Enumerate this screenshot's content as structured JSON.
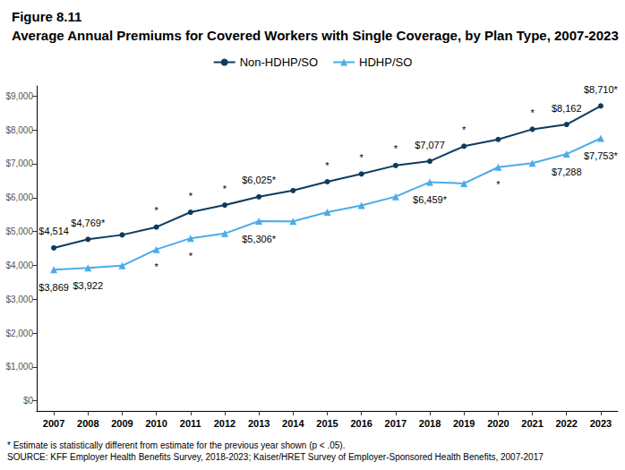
{
  "chart_data": {
    "type": "line",
    "title": "Figure 8.11",
    "subtitle": "Average Annual Premiums for Covered Workers with Single Coverage, by Plan Type, 2007-2023",
    "notes": [
      "* Estimate is statistically different from estimate for the previous year shown (p < .05).",
      "SOURCE: KFF Employer Health Benefits Survey, 2018-2023; Kaiser/HRET Survey of Employer-Sponsored Health Benefits, 2007-2017"
    ],
    "categories": [
      "2007",
      "2008",
      "2009",
      "2010",
      "2011",
      "2012",
      "2013",
      "2014",
      "2015",
      "2016",
      "2017",
      "2018",
      "2019",
      "2020",
      "2021",
      "2022",
      "2023"
    ],
    "series": [
      {
        "name": "Non-HDHP/SO",
        "color": "#0d3b5e",
        "marker": "circle",
        "values": [
          4514,
          4769,
          4900,
          5130,
          5570,
          5780,
          6025,
          6210,
          6470,
          6700,
          6950,
          7077,
          7520,
          7720,
          8020,
          8162,
          8710
        ],
        "value_labels": [
          "$4,514",
          "$4,769*",
          null,
          "*",
          "*",
          "*",
          "$6,025*",
          null,
          "*",
          "*",
          "*",
          "$7,077",
          "*",
          null,
          "*",
          "$8,162",
          "$8,710*"
        ]
      },
      {
        "name": "HDHP/SO",
        "color": "#4aacea",
        "marker": "triangle",
        "values": [
          3869,
          3922,
          3990,
          4470,
          4800,
          4940,
          5306,
          5300,
          5570,
          5770,
          6030,
          6459,
          6420,
          6900,
          7020,
          7288,
          7753
        ],
        "value_labels": [
          "$3,869",
          "$3,922",
          null,
          "*",
          "*",
          null,
          "$5,306*",
          null,
          null,
          null,
          null,
          "$6,459*",
          null,
          "*",
          null,
          "$7,288",
          "$7,753*"
        ]
      }
    ],
    "ylim": [
      -300,
      9300
    ],
    "yticks": [
      {
        "value": 0,
        "label": "$0"
      },
      {
        "value": 1000,
        "label": "$1,000"
      },
      {
        "value": 2000,
        "label": "$2,000"
      },
      {
        "value": 3000,
        "label": "$3,000"
      },
      {
        "value": 4000,
        "label": "$4,000"
      },
      {
        "value": 5000,
        "label": "$5,000"
      },
      {
        "value": 6000,
        "label": "$6,000"
      },
      {
        "value": 7000,
        "label": "$7,000"
      },
      {
        "value": 8000,
        "label": "$8,000"
      },
      {
        "value": 9000,
        "label": "$9,000"
      }
    ],
    "grid": false,
    "legend": "top",
    "data_labels": true
  }
}
